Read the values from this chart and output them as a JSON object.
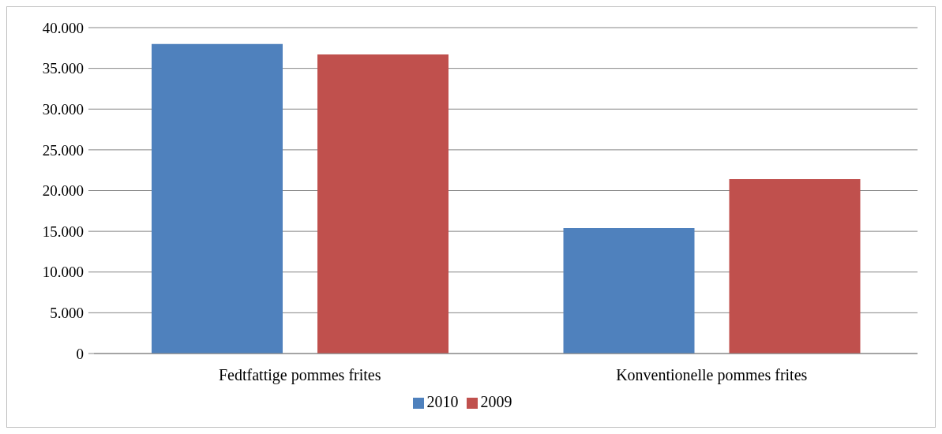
{
  "chart_data": {
    "type": "bar",
    "categories": [
      "Fedtfattige pommes frites",
      "Konventionelle pommes frites"
    ],
    "series": [
      {
        "name": "2010",
        "color": "#4f81bd",
        "values": [
          38000,
          15400
        ]
      },
      {
        "name": "2009",
        "color": "#c0504d",
        "values": [
          36700,
          21400
        ]
      }
    ],
    "ylim": [
      0,
      40000
    ],
    "yticks": [
      {
        "value": 0,
        "label": "0"
      },
      {
        "value": 5000,
        "label": "5.000"
      },
      {
        "value": 10000,
        "label": "10.000"
      },
      {
        "value": 15000,
        "label": "15.000"
      },
      {
        "value": 20000,
        "label": "20.000"
      },
      {
        "value": 25000,
        "label": "25.000"
      },
      {
        "value": 30000,
        "label": "30.000"
      },
      {
        "value": 35000,
        "label": "35.000"
      },
      {
        "value": 40000,
        "label": "40.000"
      }
    ],
    "grid": "y",
    "legend": "bottom"
  }
}
